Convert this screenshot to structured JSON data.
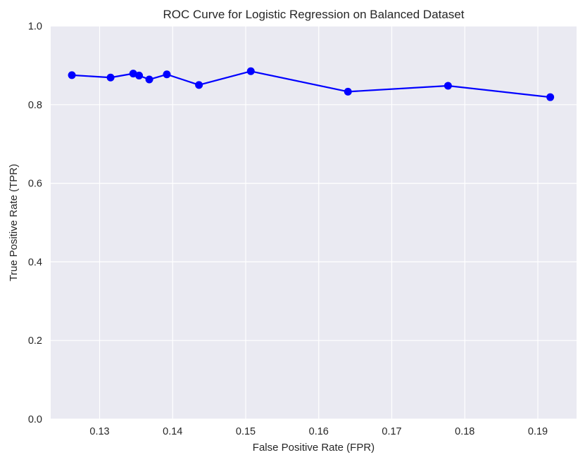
{
  "chart_data": {
    "type": "line",
    "title": "ROC Curve for Logistic Regression on Balanced Dataset",
    "xlabel": "False Positive Rate (FPR)",
    "ylabel": "True Positive Rate (TPR)",
    "xlim": [
      0.1233,
      0.1953
    ],
    "ylim": [
      0.0,
      1.0
    ],
    "xticks": [
      0.13,
      0.14,
      0.15,
      0.16,
      0.17,
      0.18,
      0.19
    ],
    "yticks": [
      0.0,
      0.2,
      0.4,
      0.6,
      0.8,
      1.0
    ],
    "xtick_labels": [
      "0.13",
      "0.14",
      "0.15",
      "0.16",
      "0.17",
      "0.18",
      "0.19"
    ],
    "ytick_labels": [
      "0.0",
      "0.2",
      "0.4",
      "0.6",
      "0.8",
      "1.0"
    ],
    "grid": true,
    "colors": {
      "background": "#eaeaf2",
      "grid": "#ffffff",
      "line": "#0000ff",
      "text": "#262626"
    },
    "series": [
      {
        "x": [
          0.1262,
          0.1315,
          0.1346,
          0.1354,
          0.1368,
          0.1392,
          0.1436,
          0.1507,
          0.164,
          0.1777,
          0.1917
        ],
        "y": [
          0.875,
          0.869,
          0.879,
          0.874,
          0.864,
          0.877,
          0.85,
          0.885,
          0.833,
          0.848,
          0.819
        ]
      }
    ]
  }
}
